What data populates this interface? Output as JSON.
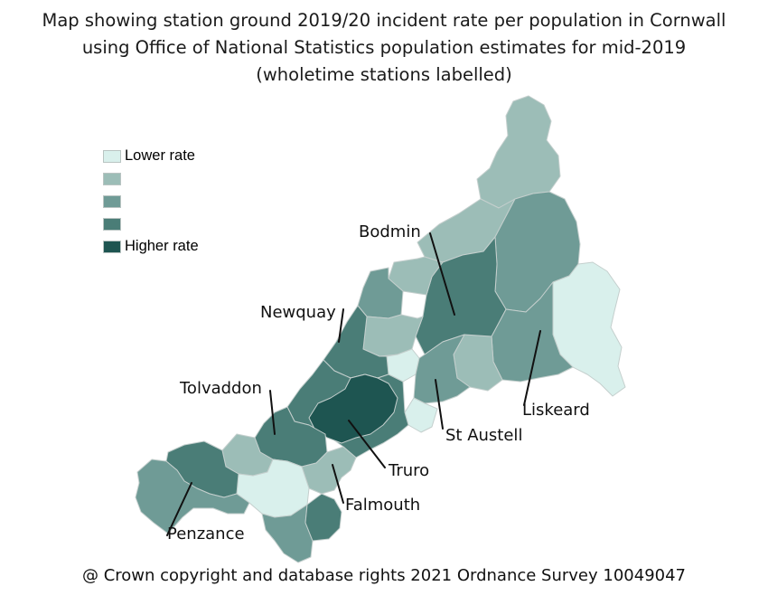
{
  "title_lines": [
    "Map showing station ground 2019/20 incident rate per population in Cornwall",
    "using Office of National Statistics population estimates for mid-2019",
    "(wholetime stations labelled)"
  ],
  "legend": [
    {
      "label": "Lower rate",
      "color": "#d9f0ec"
    },
    {
      "label": "",
      "color": "#9cbdb7"
    },
    {
      "label": "",
      "color": "#6f9b96"
    },
    {
      "label": "",
      "color": "#4a7d77"
    },
    {
      "label": "Higher rate",
      "color": "#1e5551"
    }
  ],
  "stations": {
    "bodmin": "Bodmin",
    "newquay": "Newquay",
    "tolvaddon": "Tolvaddon",
    "liskeard": "Liskeard",
    "st_austell": "St Austell",
    "truro": "Truro",
    "falmouth": "Falmouth",
    "penzance": "Penzance"
  },
  "copyright": "@ Crown copyright and database rights 2021 Ordnance Survey 10049047"
}
